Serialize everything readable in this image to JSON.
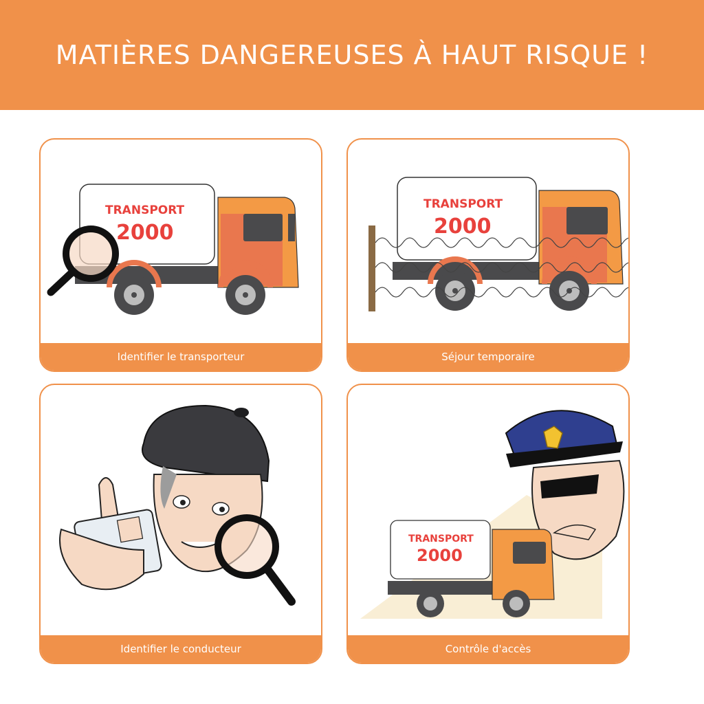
{
  "header": {
    "title": "MATIÈRES DANGEREUSES À HAUT RISQUE !"
  },
  "cards": [
    {
      "caption": "Identifier le transporteur"
    },
    {
      "caption": "Séjour temporaire"
    },
    {
      "caption": "Identifier le conducteur"
    },
    {
      "caption": "Contrôle d'accès"
    }
  ],
  "truck_logo": {
    "line1": "TRANSPORT",
    "line2": "2000"
  },
  "colors": {
    "accent": "#f0914a",
    "logo_red": "#e8413c",
    "cab_orange": "#f39a45",
    "chassis": "#4a4a4c"
  },
  "icons": [
    "magnifier-icon",
    "truck-icon",
    "barbed-wire-icon",
    "driver-license-icon",
    "police-officer-icon"
  ]
}
